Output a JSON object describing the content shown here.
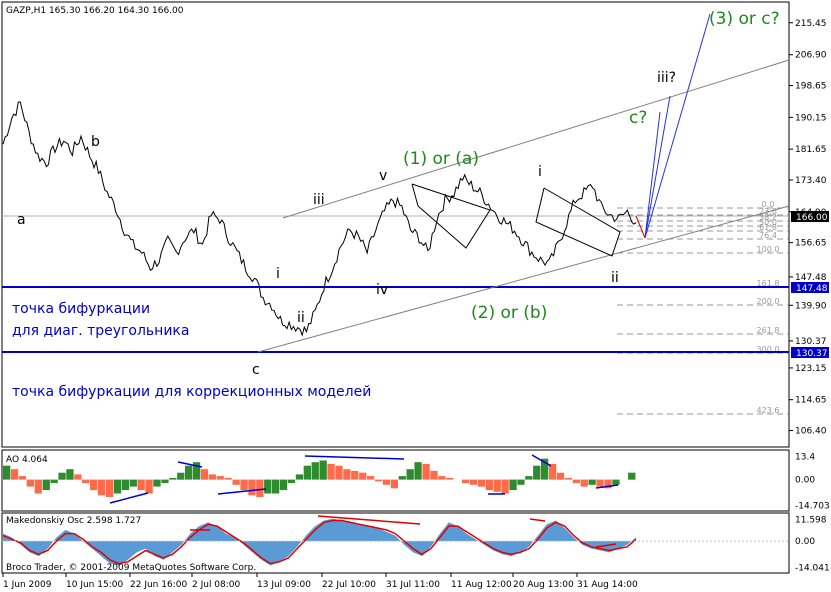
{
  "header": {
    "symbol_line": "GAZP,H1  165.30 166.20 164.30 166.00"
  },
  "ao_label": "AO 4.064",
  "mak_label": "Makedonskiy Osc 2.598  1.727",
  "copyright": "Broco Trader, © 2001-2009 MetaQuotes Software Corp.",
  "colors": {
    "price": "#000000",
    "level_line": "#0000cc",
    "channel": "#808080",
    "projection": "#2233dd",
    "green_label": "#1c8a1c",
    "ao_up": "#2e8b2e",
    "ao_down": "#ff6a4a",
    "mak_hist": "#5b9bd5",
    "mak_line": "#e00000"
  },
  "annotations": {
    "wave_a": "a",
    "wave_b": "b",
    "wave_c": "c",
    "wave_i": "i",
    "wave_ii": "ii",
    "wave_iii": "iii",
    "wave_iv": "iv",
    "wave_v": "v",
    "wave_1a": "(1) or (a)",
    "wave_2b": "(2) or (b)",
    "wave_i2": "i",
    "wave_ii2": "ii",
    "wave_c_q": "c?",
    "wave_iii_q": "iii?",
    "wave_3c": "(3) or c?",
    "note1_line1": "точка бифуркации",
    "note1_line2": "для диаг. треугольника",
    "note2": "точка бифуркации для коррекционных моделей"
  },
  "fib_labels": [
    "0.0",
    "23.6",
    "38.2",
    "50.0",
    "61.8",
    "76.4",
    "100.0",
    "161.8",
    "200.0",
    "261.8",
    "300.0",
    "423.6"
  ],
  "price_tags": {
    "current": "166.00",
    "level1": "147.48",
    "level2": "130.37"
  },
  "chart_data": [
    {
      "type": "line",
      "title": "GAZP,H1",
      "y_ticks": [
        "215.45",
        "206.90",
        "198.65",
        "190.15",
        "181.65",
        "173.40",
        "164.90",
        "156.65",
        "147.48",
        "139.90",
        "130.37",
        "123.15",
        "114.65",
        "106.40"
      ],
      "x_ticks": [
        "1 Jun 2009",
        "10 Jun 15:00",
        "22 Jun 16:00",
        "2 Jul 08:00",
        "13 Jul 09:00",
        "22 Jul 10:00",
        "31 Jul 11:00",
        "11 Aug 12:00",
        "20 Aug 13:00",
        "31 Aug 14:00"
      ],
      "ylim": [
        102.0,
        221.0
      ],
      "levels": [
        147.48,
        130.37
      ],
      "series": [
        {
          "values": [
            183,
            190,
            194,
            186,
            180,
            178,
            182,
            184,
            181,
            185,
            180,
            176,
            170,
            166,
            160,
            156,
            154,
            150,
            152,
            157,
            154,
            158,
            160,
            156,
            164,
            163,
            158,
            154,
            150,
            147,
            142,
            140,
            136,
            135,
            134,
            133,
            138,
            145,
            150,
            156,
            160,
            158,
            154,
            160,
            165,
            168,
            166,
            160,
            158,
            154,
            163,
            168,
            170,
            174,
            172,
            170,
            167,
            164,
            162,
            160,
            157,
            154,
            152,
            151,
            156,
            162,
            168,
            170,
            172,
            166,
            164,
            163,
            165,
            162
          ]
        }
      ]
    },
    {
      "type": "bar",
      "title": "AO 4.064",
      "y_ticks": [
        "13.4",
        "0.00",
        "-14.703"
      ],
      "ylim": [
        -18,
        17
      ],
      "series": [
        {
          "values": [
            8,
            6,
            2,
            -4,
            -8,
            -6,
            -2,
            4,
            6,
            3,
            -2,
            -6,
            -9,
            -10,
            -8,
            -6,
            -4,
            -6,
            -8,
            -4,
            -2,
            1,
            4,
            8,
            10,
            6,
            3,
            2,
            1,
            -3,
            -6,
            -9,
            -10,
            -8,
            -8,
            -6,
            -2,
            3,
            8,
            10,
            11,
            9,
            8,
            6,
            5,
            4,
            2,
            -1,
            -3,
            -5,
            2,
            6,
            10,
            9,
            5,
            2,
            1,
            0,
            -2,
            -3,
            -4,
            -6,
            -7,
            -8,
            -6,
            -3,
            2,
            8,
            12,
            9,
            4,
            1,
            -2,
            -4,
            -3,
            -4,
            -5,
            -3,
            0,
            4
          ]
        }
      ]
    },
    {
      "type": "area",
      "title": "Makedonskiy Osc",
      "y_ticks": [
        "11.598",
        "0.00",
        "-14.041"
      ],
      "ylim": [
        -17,
        15
      ],
      "series": [
        {
          "name": "2.598",
          "values": [
            4,
            2,
            -2,
            -6,
            -8,
            -4,
            2,
            6,
            4,
            0,
            -4,
            -8,
            -12,
            -13,
            -10,
            -6,
            -4,
            -8,
            -10,
            -6,
            -2,
            4,
            8,
            10,
            8,
            4,
            2,
            -2,
            -6,
            -10,
            -13,
            -11,
            -8,
            -3,
            3,
            8,
            11,
            12,
            11,
            10,
            9,
            8,
            7,
            5,
            3,
            -2,
            -6,
            -8,
            -3,
            4,
            10,
            8,
            4,
            1,
            -2,
            -5,
            -7,
            -8,
            -6,
            -3,
            3,
            9,
            11,
            7,
            2,
            -2,
            -4,
            -5,
            -6,
            -4,
            -2,
            2
          ]
        },
        {
          "name": "1.727",
          "values": [
            3,
            1,
            -1,
            -5,
            -7,
            -5,
            0,
            4,
            4,
            1,
            -3,
            -6,
            -10,
            -12,
            -11,
            -8,
            -5,
            -7,
            -9,
            -7,
            -3,
            2,
            6,
            9,
            8,
            5,
            2,
            -1,
            -5,
            -9,
            -12,
            -11,
            -9,
            -4,
            1,
            6,
            10,
            11,
            11,
            10,
            9,
            8,
            7,
            6,
            4,
            0,
            -4,
            -7,
            -4,
            2,
            8,
            8,
            5,
            2,
            -1,
            -4,
            -6,
            -7,
            -6,
            -4,
            1,
            7,
            10,
            8,
            3,
            -1,
            -3,
            -4,
            -5,
            -4,
            -3,
            1
          ]
        }
      ]
    }
  ]
}
